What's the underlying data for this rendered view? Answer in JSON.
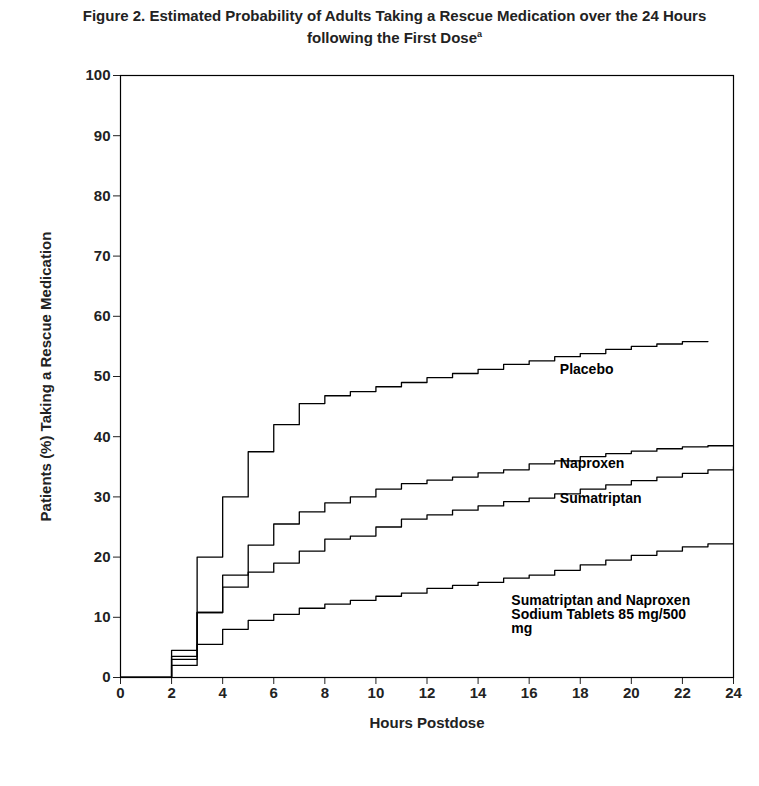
{
  "chart_data": {
    "type": "line",
    "title": "Figure 2. Estimated Probability of Adults Taking a Rescue Medication over the 24 Hours following the First Dose",
    "title_superscript": "a",
    "x_label": "Hours Postdose",
    "y_label": "Patients (%) Taking a Rescue Medication",
    "line_style": "step",
    "x": [
      0,
      1,
      2,
      3,
      4,
      5,
      6,
      7,
      8,
      9,
      10,
      11,
      12,
      13,
      14,
      15,
      16,
      17,
      18,
      19,
      20,
      21,
      22,
      23,
      24
    ],
    "series": [
      {
        "name": "Placebo",
        "color": "#000000",
        "values": [
          0,
          0,
          4.5,
          20,
          30,
          37.5,
          42,
          45.5,
          46.8,
          47.5,
          48.3,
          49,
          49.8,
          50.5,
          51.2,
          52,
          52.6,
          53.3,
          53.8,
          54.5,
          55,
          55.4,
          55.8,
          55.8,
          null
        ]
      },
      {
        "name": "Naproxen",
        "color": "#000000",
        "values": [
          0,
          0,
          3.5,
          10.8,
          15,
          22,
          25.5,
          27.5,
          29,
          30,
          31.3,
          32.2,
          32.8,
          33.3,
          34,
          34.5,
          35.5,
          36,
          36.7,
          37.2,
          37.6,
          38,
          38.3,
          38.5,
          38.5
        ]
      },
      {
        "name": "Sumatriptan",
        "color": "#000000",
        "values": [
          0,
          0,
          3,
          10.8,
          17,
          17.5,
          19,
          21,
          23,
          23.5,
          25,
          26.3,
          27,
          27.8,
          28.5,
          29.2,
          29.8,
          30.5,
          31.3,
          32,
          32.7,
          33.3,
          33.9,
          34.5,
          35
        ]
      },
      {
        "name": "Sumatriptan and Naproxen Sodium Tablets 85 mg/500 mg",
        "color": "#000000",
        "values": [
          0,
          0,
          2,
          5.5,
          8,
          9.5,
          10.5,
          11.5,
          12.2,
          12.8,
          13.5,
          14,
          14.8,
          15.3,
          15.8,
          16.5,
          17,
          17.8,
          18.7,
          19.5,
          20.3,
          21,
          21.7,
          22.2,
          22.3
        ]
      }
    ],
    "xlim": [
      0,
      24
    ],
    "xticks": [
      0,
      2,
      4,
      6,
      8,
      10,
      12,
      14,
      16,
      18,
      20,
      22,
      24
    ],
    "ylim": [
      0,
      100
    ],
    "yticks": [
      0,
      10,
      20,
      30,
      40,
      50,
      60,
      70,
      80,
      90,
      100
    ],
    "grid": false
  }
}
